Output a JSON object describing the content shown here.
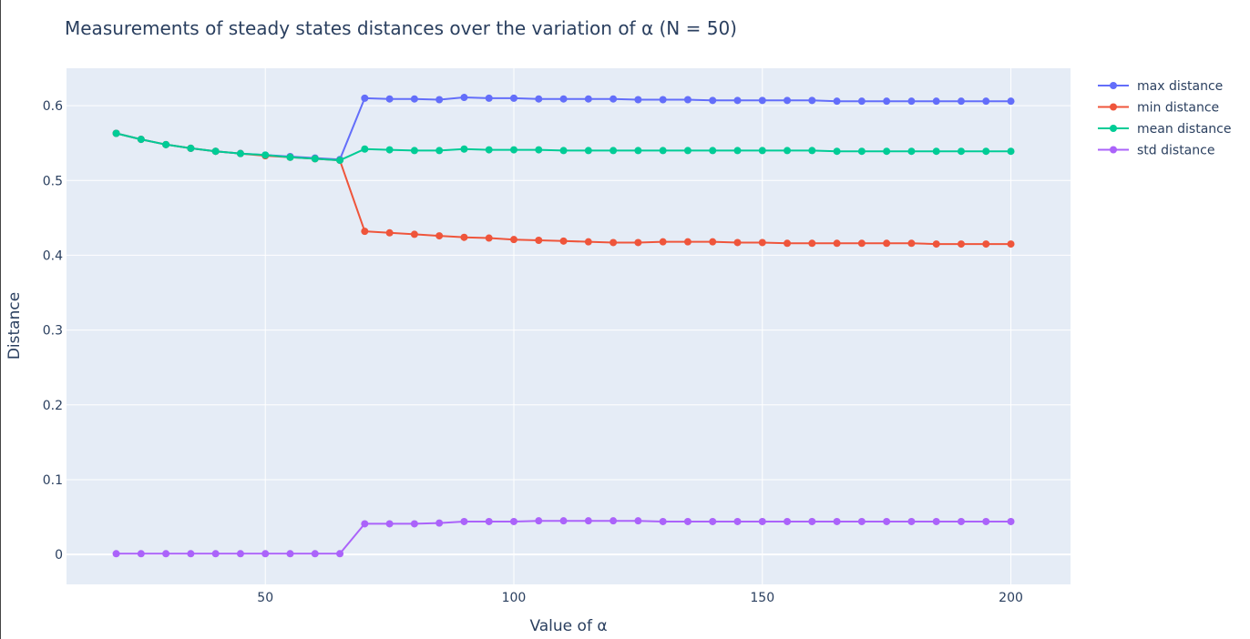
{
  "chart_data": {
    "type": "line",
    "title": "Measurements of steady states distances over the variation of α (N = 50)",
    "xlabel": "Value of α",
    "ylabel": "Distance",
    "xlim": [
      10,
      212
    ],
    "ylim": [
      -0.04,
      0.65
    ],
    "xticks": [
      50,
      100,
      150,
      200
    ],
    "yticks": [
      0,
      0.1,
      0.2,
      0.3,
      0.4,
      0.5,
      0.6
    ],
    "grid": true,
    "legend_position": "top-right",
    "x": [
      20,
      25,
      30,
      35,
      40,
      45,
      50,
      55,
      60,
      65,
      70,
      75,
      80,
      85,
      90,
      95,
      100,
      105,
      110,
      115,
      120,
      125,
      130,
      135,
      140,
      145,
      150,
      155,
      160,
      165,
      170,
      175,
      180,
      185,
      190,
      195,
      200
    ],
    "series": [
      {
        "name": "max distance",
        "color": "#636efa",
        "values": [
          0.563,
          0.555,
          0.548,
          0.543,
          0.539,
          0.536,
          0.534,
          0.532,
          0.53,
          0.528,
          0.61,
          0.609,
          0.609,
          0.608,
          0.611,
          0.61,
          0.61,
          0.609,
          0.609,
          0.609,
          0.609,
          0.608,
          0.608,
          0.608,
          0.607,
          0.607,
          0.607,
          0.607,
          0.607,
          0.606,
          0.606,
          0.606,
          0.606,
          0.606,
          0.606,
          0.606,
          0.606
        ]
      },
      {
        "name": "min distance",
        "color": "#ef553b",
        "values": [
          0.563,
          0.555,
          0.548,
          0.543,
          0.539,
          0.536,
          0.533,
          0.531,
          0.529,
          0.527,
          0.432,
          0.43,
          0.428,
          0.426,
          0.424,
          0.423,
          0.421,
          0.42,
          0.419,
          0.418,
          0.417,
          0.417,
          0.418,
          0.418,
          0.418,
          0.417,
          0.417,
          0.416,
          0.416,
          0.416,
          0.416,
          0.416,
          0.416,
          0.415,
          0.415,
          0.415,
          0.415
        ]
      },
      {
        "name": "mean distance",
        "color": "#00cc96",
        "values": [
          0.563,
          0.555,
          0.548,
          0.543,
          0.539,
          0.536,
          0.534,
          0.531,
          0.529,
          0.527,
          0.542,
          0.541,
          0.54,
          0.54,
          0.542,
          0.541,
          0.541,
          0.541,
          0.54,
          0.54,
          0.54,
          0.54,
          0.54,
          0.54,
          0.54,
          0.54,
          0.54,
          0.54,
          0.54,
          0.539,
          0.539,
          0.539,
          0.539,
          0.539,
          0.539,
          0.539,
          0.539
        ]
      },
      {
        "name": "std distance",
        "color": "#ab63fa",
        "values": [
          0.001,
          0.001,
          0.001,
          0.001,
          0.001,
          0.001,
          0.001,
          0.001,
          0.001,
          0.001,
          0.041,
          0.041,
          0.041,
          0.042,
          0.044,
          0.044,
          0.044,
          0.045,
          0.045,
          0.045,
          0.045,
          0.045,
          0.044,
          0.044,
          0.044,
          0.044,
          0.044,
          0.044,
          0.044,
          0.044,
          0.044,
          0.044,
          0.044,
          0.044,
          0.044,
          0.044,
          0.044
        ]
      }
    ],
    "plot_background": "#e5ecf6",
    "grid_color": "#ffffff",
    "text_color": "#2a3f5f"
  }
}
